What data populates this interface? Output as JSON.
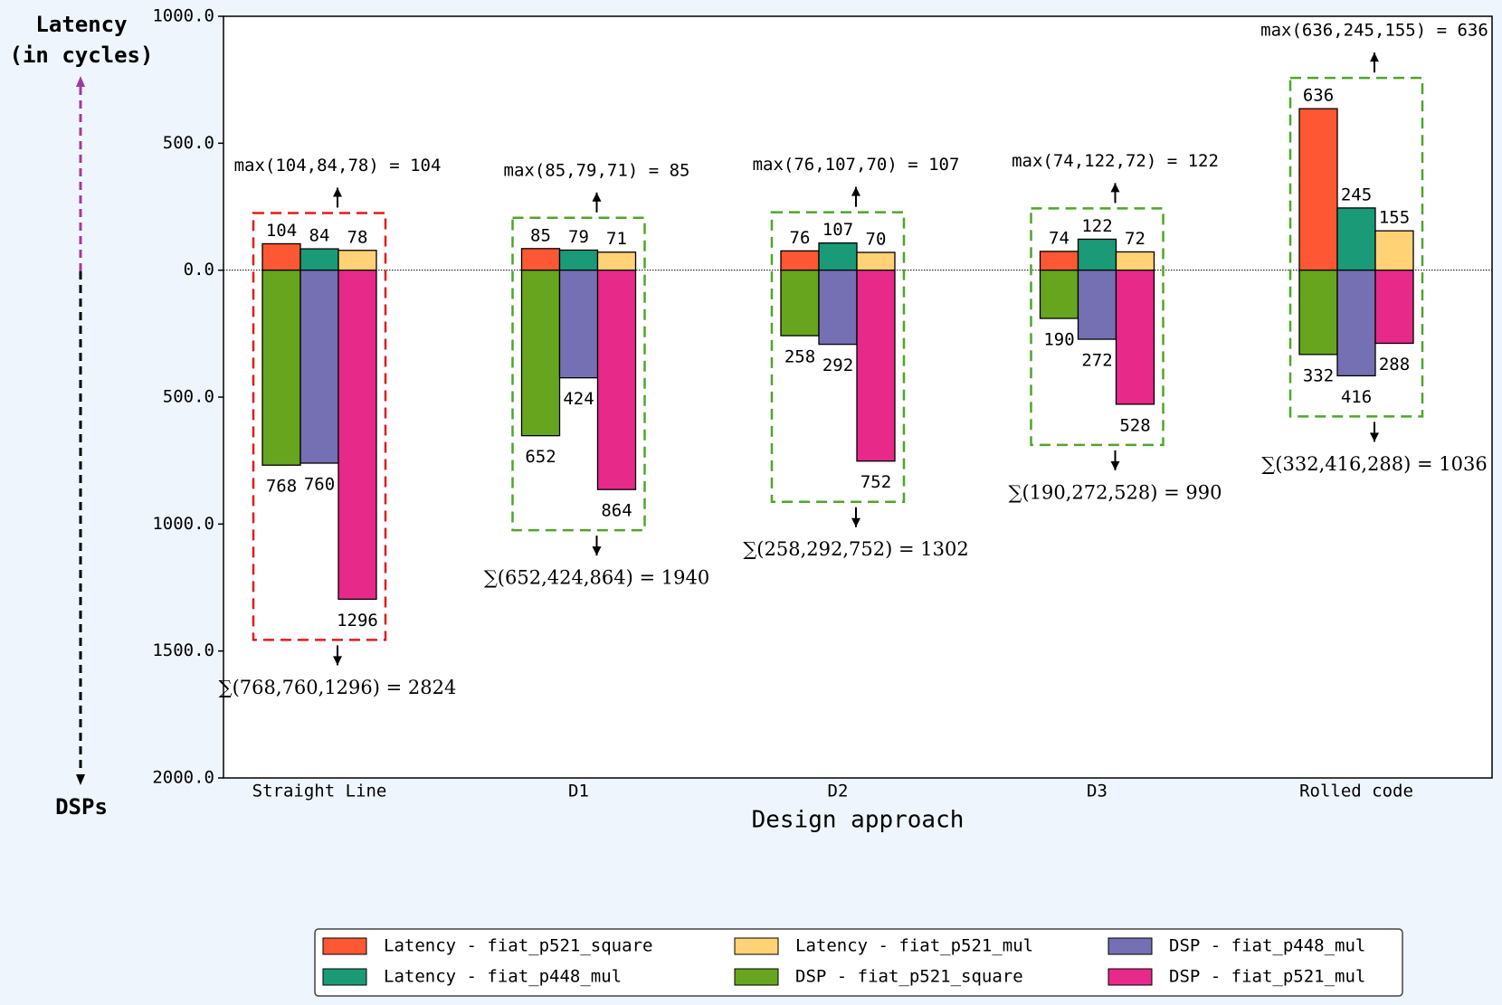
{
  "chart_data": {
    "type": "diverging-bar",
    "xlabel": "Design approach",
    "ylabel_up": [
      "Latency",
      "(in cycles)"
    ],
    "ylabel_down": "DSPs",
    "categories": [
      "Straight Line",
      "D1",
      "D2",
      "D3",
      "Rolled code"
    ],
    "series": [
      {
        "name": "Latency - fiat_p521_square",
        "color": "#fd5733",
        "values": [
          104,
          85,
          76,
          74,
          636
        ]
      },
      {
        "name": "Latency - fiat_p448_mul",
        "color": "#1b9a77",
        "values": [
          84,
          79,
          107,
          122,
          245
        ]
      },
      {
        "name": "Latency - fiat_p521_mul",
        "color": "#fed275",
        "values": [
          78,
          71,
          70,
          72,
          155
        ]
      },
      {
        "name": "DSP - fiat_p521_square",
        "color": "#67a51f",
        "values": [
          -768,
          -652,
          -258,
          -190,
          -332
        ],
        "value_labels": [
          "768",
          "652",
          "258",
          "190",
          "332"
        ]
      },
      {
        "name": "DSP - fiat_p448_mul",
        "color": "#7570b3",
        "values": [
          -760,
          -424,
          -292,
          -272,
          -416
        ],
        "value_labels": [
          "760",
          "424",
          "292",
          "272",
          "416"
        ]
      },
      {
        "name": "DSP - fiat_p521_mul",
        "color": "#e7298a",
        "values": [
          -1296,
          -864,
          -752,
          -528,
          -288
        ],
        "value_labels": [
          "1296",
          "864",
          "752",
          "528",
          "288"
        ]
      }
    ],
    "max_labels": [
      "max(104,84,78) = 104",
      "max(85,79,71) = 85",
      "max(76,107,70) = 107",
      "max(74,122,72) = 122",
      "max(636,245,155) = 636"
    ],
    "sum_labels": [
      "∑(768,760,1296) = 2824",
      "∑(652,424,864) = 1940",
      "∑(258,292,752) = 1302",
      "∑(190,272,528) = 990",
      "∑(332,416,288) = 1036"
    ],
    "box_colors": [
      "#e31a1c",
      "#4fa52a",
      "#4fa52a",
      "#4fa52a",
      "#4fa52a"
    ],
    "ylim": [
      -2000,
      1000
    ],
    "yticks": [
      {
        "value": 1000,
        "label": "1000.0"
      },
      {
        "value": 500,
        "label": "500.0"
      },
      {
        "value": 0,
        "label": "0.0"
      },
      {
        "value": -500,
        "label": "500.0"
      },
      {
        "value": -1000,
        "label": "1000.0"
      },
      {
        "value": -1500,
        "label": "1500.0"
      },
      {
        "value": -2000,
        "label": "2000.0"
      }
    ],
    "grid": false,
    "legend": "bottom"
  }
}
